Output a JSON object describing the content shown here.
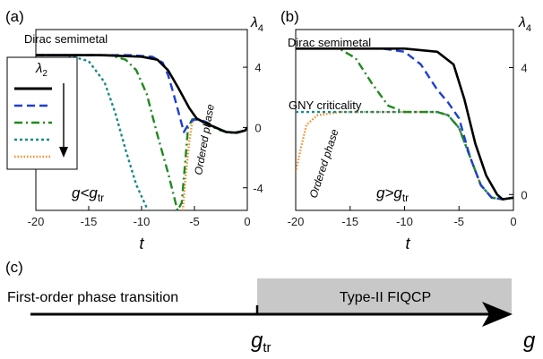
{
  "chart_data": [
    {
      "type": "line",
      "panel_label": "(a)",
      "xlabel": "t",
      "ylabel": "λ",
      "ylabel_sub": "4",
      "xlim": [
        -20,
        0
      ],
      "ylim": [
        -5.5,
        6.5
      ],
      "xticks": [
        -20,
        -15,
        -10,
        -5,
        0
      ],
      "xtick_labels": [
        "-20",
        "-15",
        "-10",
        "-5",
        "0"
      ],
      "yticks": [
        4,
        0,
        -4
      ],
      "ytick_labels": [
        "4",
        "0",
        "-4"
      ],
      "annotations": {
        "top_label": "Dirac semimetal",
        "region_label": "Ordered phase",
        "condition": {
          "main": "g<g",
          "sub": "tr"
        }
      },
      "legend": {
        "title_main": "λ",
        "title_sub": "2",
        "placement": "left"
      },
      "series": [
        {
          "color": "#000000",
          "style": "solid",
          "points": [
            [
              -20,
              4.8
            ],
            [
              -14,
              4.8
            ],
            [
              -10,
              4.7
            ],
            [
              -8.5,
              4.5
            ],
            [
              -7.5,
              3.8
            ],
            [
              -6.5,
              2.6
            ],
            [
              -5.5,
              1.3
            ],
            [
              -4.8,
              0.6
            ],
            [
              -4,
              0.3
            ],
            [
              -3,
              0
            ],
            [
              -2,
              -0.3
            ],
            [
              -1,
              -0.35
            ],
            [
              -0.2,
              -0.2
            ],
            [
              0,
              0
            ]
          ]
        },
        {
          "color": "#1f3fd0",
          "style": "dash",
          "points": [
            [
              -20,
              4.8
            ],
            [
              -11,
              4.8
            ],
            [
              -9,
              4.7
            ],
            [
              -8,
              4.3
            ],
            [
              -7.5,
              3.5
            ],
            [
              -7,
              2.3
            ],
            [
              -6.5,
              1
            ],
            [
              -6,
              -0.3
            ],
            [
              -5.5,
              0.3
            ],
            [
              -5,
              0.55
            ],
            [
              -4,
              0.4
            ],
            [
              -3,
              0
            ],
            [
              -2,
              -0.3
            ],
            [
              -1,
              -0.35
            ],
            [
              -0.2,
              -0.2
            ],
            [
              0,
              0
            ]
          ]
        },
        {
          "color": "#1f8a1f",
          "style": "dashdot",
          "points": [
            [
              -20,
              4.8
            ],
            [
              -13,
              4.8
            ],
            [
              -11.5,
              4.5
            ],
            [
              -10.5,
              3.8
            ],
            [
              -9.5,
              2.2
            ],
            [
              -8.5,
              -0.5
            ],
            [
              -7.5,
              -3
            ],
            [
              -6.6,
              -5.5
            ],
            [
              -6.2,
              -5
            ],
            [
              -5.9,
              -2.5
            ],
            [
              -5.6,
              0
            ],
            [
              -5.2,
              0.55
            ],
            [
              -4.5,
              0.5
            ],
            [
              -3.5,
              0.1
            ],
            [
              -2.5,
              -0.2
            ],
            [
              -1.5,
              -0.35
            ],
            [
              -0.5,
              -0.25
            ],
            [
              0,
              0
            ]
          ]
        },
        {
          "color": "#1a8a8a",
          "style": "dot",
          "points": [
            [
              -20,
              4.8
            ],
            [
              -17,
              4.8
            ],
            [
              -15,
              4.4
            ],
            [
              -13.5,
              3
            ],
            [
              -12.5,
              1
            ],
            [
              -11.5,
              -1.5
            ],
            [
              -10.5,
              -3.8
            ],
            [
              -9.4,
              -5.5
            ]
          ]
        },
        {
          "color": "#f28c28",
          "style": "densedot",
          "points": [
            [
              -6.1,
              -5.5
            ],
            [
              -5.8,
              -3
            ],
            [
              -5.5,
              -1
            ],
            [
              -5.2,
              0.4
            ],
            [
              -4.8,
              0.55
            ],
            [
              -4,
              0.4
            ],
            [
              -3,
              0
            ],
            [
              -2,
              -0.3
            ],
            [
              -1,
              -0.35
            ],
            [
              -0.2,
              -0.2
            ],
            [
              0,
              0
            ]
          ]
        }
      ]
    },
    {
      "type": "line",
      "panel_label": "(b)",
      "xlabel": "t",
      "ylabel": "λ",
      "ylabel_sub": "4",
      "xlim": [
        -20,
        0
      ],
      "ylim": [
        -0.5,
        5.2
      ],
      "xticks": [
        -20,
        -15,
        -10,
        -5,
        0
      ],
      "xtick_labels": [
        "-20",
        "-15",
        "-10",
        "-5",
        "0"
      ],
      "yticks": [
        4,
        0
      ],
      "ytick_labels": [
        "4",
        "0"
      ],
      "annotations": {
        "top_label": "Dirac semimetal",
        "mid_label": "GNY criticality",
        "region_label": "Ordered phase",
        "condition": {
          "main": "g>g",
          "sub": "tr"
        }
      },
      "series": [
        {
          "color": "#000000",
          "style": "solid",
          "points": [
            [
              -20,
              4.6
            ],
            [
              -10,
              4.6
            ],
            [
              -7,
              4.5
            ],
            [
              -5.5,
              4.1
            ],
            [
              -4.5,
              3
            ],
            [
              -3.5,
              1.6
            ],
            [
              -2.5,
              0.6
            ],
            [
              -1.5,
              0
            ],
            [
              -1,
              -0.15
            ],
            [
              0,
              -0.1
            ]
          ]
        },
        {
          "color": "#1f3fd0",
          "style": "dash",
          "points": [
            [
              -20,
              4.6
            ],
            [
              -12,
              4.6
            ],
            [
              -10,
              4.5
            ],
            [
              -8.5,
              4.1
            ],
            [
              -7,
              3.3
            ],
            [
              -6,
              2.9
            ],
            [
              -5,
              2.4
            ],
            [
              -4,
              1.2
            ],
            [
              -3,
              0.3
            ],
            [
              -2,
              -0.1
            ],
            [
              -1,
              -0.15
            ],
            [
              0,
              -0.1
            ]
          ]
        },
        {
          "color": "#1f8a1f",
          "style": "dashdot",
          "points": [
            [
              -20,
              4.6
            ],
            [
              -16,
              4.6
            ],
            [
              -14.5,
              4.3
            ],
            [
              -13,
              3.5
            ],
            [
              -11.5,
              2.8
            ],
            [
              -10,
              2.6
            ],
            [
              -7,
              2.6
            ],
            [
              -6,
              2.5
            ],
            [
              -5,
              2.1
            ],
            [
              -4,
              1.2
            ],
            [
              -3,
              0.3
            ],
            [
              -2,
              -0.1
            ],
            [
              -1,
              -0.15
            ],
            [
              0,
              -0.1
            ]
          ]
        },
        {
          "color": "#1a8a8a",
          "style": "dot",
          "points": [
            [
              -20,
              2.6
            ],
            [
              -7,
              2.6
            ],
            [
              -6,
              2.5
            ],
            [
              -5,
              2.1
            ],
            [
              -4,
              1.2
            ],
            [
              -3,
              0.3
            ],
            [
              -2,
              -0.1
            ],
            [
              -1,
              -0.15
            ],
            [
              0,
              -0.1
            ]
          ]
        },
        {
          "color": "#f28c28",
          "style": "densedot",
          "points": [
            [
              -20,
              0.7
            ],
            [
              -19.5,
              1.5
            ],
            [
              -19,
              2.2
            ],
            [
              -18,
              2.5
            ],
            [
              -16,
              2.6
            ],
            [
              -7,
              2.6
            ],
            [
              -6,
              2.5
            ],
            [
              -5,
              2.1
            ],
            [
              -4,
              1.2
            ],
            [
              -3,
              0.3
            ],
            [
              -2,
              -0.1
            ],
            [
              -1,
              -0.15
            ],
            [
              0,
              -0.1
            ]
          ]
        }
      ]
    }
  ],
  "diagram_c": {
    "panel_label": "(c)",
    "left_text": "First-order phase transition",
    "right_text": "Type-II FIQCP",
    "threshold": {
      "main": "g",
      "sub": "tr"
    },
    "axis_label": "g",
    "fill_color": "#c8c8c8"
  }
}
